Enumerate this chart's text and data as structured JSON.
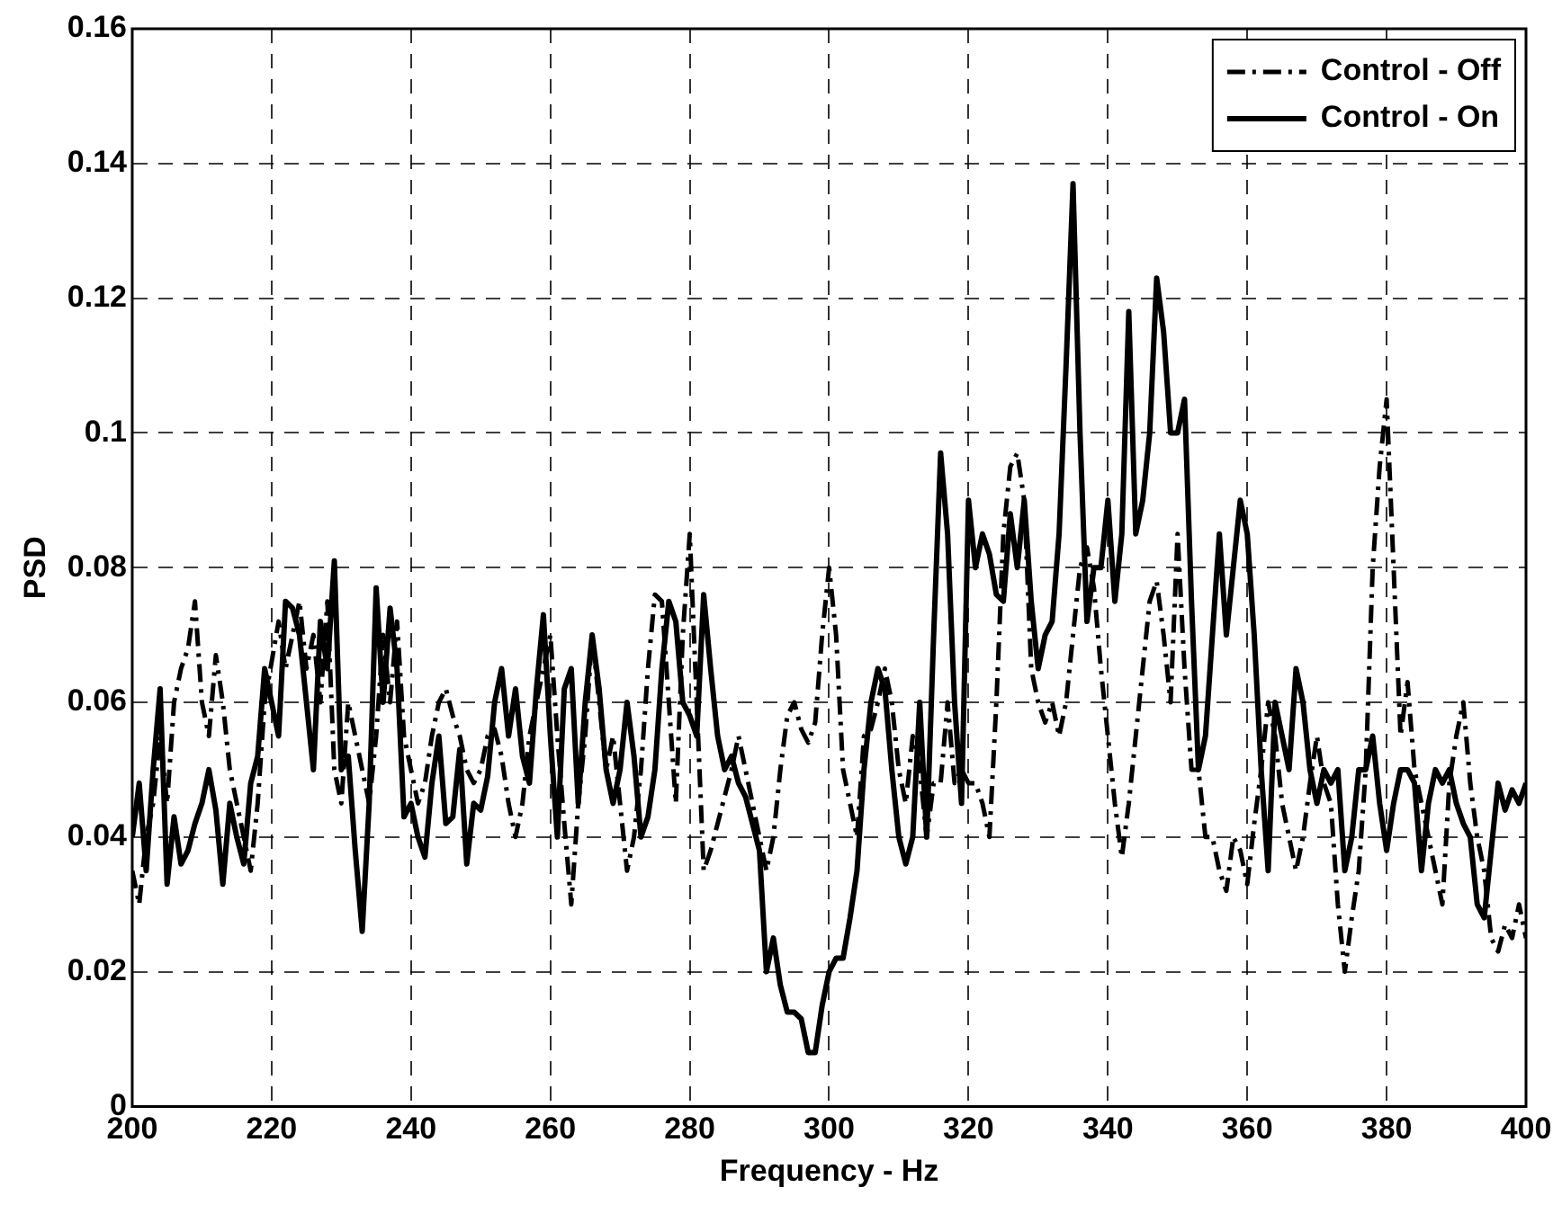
{
  "chart_data": {
    "type": "line",
    "xlabel": "Frequency - Hz",
    "ylabel": "PSD",
    "xlim": [
      200,
      400
    ],
    "xticks": [
      200,
      220,
      240,
      260,
      280,
      300,
      320,
      340,
      360,
      380,
      400
    ],
    "ylim": [
      0,
      0.16
    ],
    "yticks": [
      0,
      0.02,
      0.04,
      0.06,
      0.08,
      0.1,
      0.12,
      0.14,
      0.16
    ],
    "grid": true,
    "legend": "top right",
    "marker": "none",
    "x": [
      200,
      201,
      202,
      203,
      204,
      205,
      206,
      207,
      208,
      209,
      210,
      211,
      212,
      213,
      214,
      215,
      216,
      217,
      218,
      219,
      220,
      221,
      222,
      223,
      224,
      225,
      226,
      227,
      228,
      229,
      230,
      231,
      232,
      233,
      234,
      235,
      236,
      237,
      238,
      239,
      240,
      241,
      242,
      243,
      244,
      245,
      246,
      247,
      248,
      249,
      250,
      251,
      252,
      253,
      254,
      255,
      256,
      257,
      258,
      259,
      260,
      261,
      262,
      263,
      264,
      265,
      266,
      267,
      268,
      269,
      270,
      271,
      272,
      273,
      274,
      275,
      276,
      277,
      278,
      279,
      280,
      281,
      282,
      283,
      284,
      285,
      286,
      287,
      288,
      289,
      290,
      291,
      292,
      293,
      294,
      295,
      296,
      297,
      298,
      299,
      300,
      301,
      302,
      303,
      304,
      305,
      306,
      307,
      308,
      309,
      310,
      311,
      312,
      313,
      314,
      315,
      316,
      317,
      318,
      319,
      320,
      321,
      322,
      323,
      324,
      325,
      326,
      327,
      328,
      329,
      330,
      331,
      332,
      333,
      334,
      335,
      336,
      337,
      338,
      339,
      340,
      341,
      342,
      343,
      344,
      345,
      346,
      347,
      348,
      349,
      350,
      351,
      352,
      353,
      354,
      355,
      356,
      357,
      358,
      359,
      360,
      361,
      362,
      363,
      364,
      365,
      366,
      367,
      368,
      369,
      370,
      371,
      372,
      373,
      374,
      375,
      376,
      377,
      378,
      379,
      380,
      381,
      382,
      383,
      384,
      385,
      386,
      387,
      388,
      389,
      390,
      391,
      392,
      393,
      394,
      395,
      396,
      397,
      398,
      399,
      400
    ],
    "series": [
      {
        "name": "Control - Off",
        "color": "#000000",
        "line_style": "dashed",
        "values": [
          0.035,
          0.03,
          0.04,
          0.045,
          0.055,
          0.045,
          0.06,
          0.065,
          0.068,
          0.075,
          0.06,
          0.055,
          0.067,
          0.06,
          0.05,
          0.045,
          0.04,
          0.035,
          0.045,
          0.06,
          0.066,
          0.072,
          0.065,
          0.07,
          0.075,
          0.065,
          0.07,
          0.06,
          0.075,
          0.05,
          0.045,
          0.06,
          0.055,
          0.05,
          0.045,
          0.055,
          0.07,
          0.06,
          0.072,
          0.055,
          0.05,
          0.045,
          0.048,
          0.055,
          0.06,
          0.062,
          0.058,
          0.055,
          0.05,
          0.048,
          0.05,
          0.055,
          0.056,
          0.052,
          0.045,
          0.04,
          0.045,
          0.055,
          0.06,
          0.065,
          0.07,
          0.055,
          0.042,
          0.03,
          0.045,
          0.055,
          0.07,
          0.06,
          0.05,
          0.055,
          0.045,
          0.035,
          0.04,
          0.05,
          0.065,
          0.076,
          0.075,
          0.06,
          0.045,
          0.07,
          0.085,
          0.06,
          0.035,
          0.038,
          0.042,
          0.046,
          0.05,
          0.055,
          0.05,
          0.045,
          0.04,
          0.035,
          0.04,
          0.05,
          0.058,
          0.06,
          0.056,
          0.054,
          0.057,
          0.07,
          0.08,
          0.07,
          0.05,
          0.045,
          0.04,
          0.055,
          0.056,
          0.06,
          0.065,
          0.06,
          0.05,
          0.045,
          0.055,
          0.05,
          0.04,
          0.048,
          0.048,
          0.06,
          0.048,
          0.05,
          0.048,
          0.048,
          0.045,
          0.04,
          0.06,
          0.085,
          0.095,
          0.097,
          0.09,
          0.065,
          0.06,
          0.057,
          0.06,
          0.055,
          0.06,
          0.07,
          0.08,
          0.083,
          0.077,
          0.065,
          0.055,
          0.045,
          0.037,
          0.045,
          0.055,
          0.065,
          0.075,
          0.078,
          0.07,
          0.06,
          0.085,
          0.065,
          0.05,
          0.05,
          0.04,
          0.04,
          0.035,
          0.032,
          0.04,
          0.038,
          0.033,
          0.042,
          0.05,
          0.06,
          0.055,
          0.045,
          0.04,
          0.035,
          0.04,
          0.048,
          0.055,
          0.048,
          0.045,
          0.03,
          0.02,
          0.028,
          0.035,
          0.05,
          0.08,
          0.095,
          0.105,
          0.08,
          0.055,
          0.063,
          0.05,
          0.045,
          0.04,
          0.035,
          0.03,
          0.048,
          0.055,
          0.06,
          0.048,
          0.04,
          0.035,
          0.025,
          0.023,
          0.027,
          0.025,
          0.03,
          0.025
        ]
      },
      {
        "name": "Control - On",
        "color": "#000000",
        "line_style": "solid",
        "values": [
          0.04,
          0.048,
          0.035,
          0.05,
          0.062,
          0.033,
          0.043,
          0.036,
          0.038,
          0.042,
          0.045,
          0.05,
          0.044,
          0.033,
          0.045,
          0.04,
          0.036,
          0.048,
          0.052,
          0.065,
          0.06,
          0.055,
          0.075,
          0.074,
          0.07,
          0.06,
          0.05,
          0.072,
          0.065,
          0.081,
          0.05,
          0.052,
          0.038,
          0.026,
          0.045,
          0.077,
          0.06,
          0.074,
          0.065,
          0.043,
          0.045,
          0.04,
          0.037,
          0.048,
          0.055,
          0.042,
          0.043,
          0.053,
          0.036,
          0.045,
          0.044,
          0.049,
          0.06,
          0.065,
          0.055,
          0.062,
          0.052,
          0.048,
          0.062,
          0.073,
          0.055,
          0.04,
          0.062,
          0.065,
          0.045,
          0.06,
          0.07,
          0.062,
          0.05,
          0.045,
          0.05,
          0.06,
          0.052,
          0.04,
          0.043,
          0.05,
          0.065,
          0.075,
          0.072,
          0.06,
          0.058,
          0.055,
          0.076,
          0.065,
          0.055,
          0.05,
          0.052,
          0.048,
          0.046,
          0.042,
          0.038,
          0.02,
          0.025,
          0.018,
          0.014,
          0.014,
          0.013,
          0.008,
          0.008,
          0.015,
          0.02,
          0.022,
          0.022,
          0.028,
          0.035,
          0.05,
          0.06,
          0.065,
          0.062,
          0.05,
          0.04,
          0.036,
          0.04,
          0.06,
          0.04,
          0.07,
          0.097,
          0.085,
          0.06,
          0.045,
          0.09,
          0.08,
          0.085,
          0.082,
          0.076,
          0.075,
          0.088,
          0.08,
          0.09,
          0.075,
          0.065,
          0.07,
          0.072,
          0.085,
          0.11,
          0.137,
          0.1,
          0.072,
          0.08,
          0.08,
          0.09,
          0.075,
          0.085,
          0.118,
          0.085,
          0.09,
          0.1,
          0.123,
          0.115,
          0.1,
          0.1,
          0.105,
          0.075,
          0.05,
          0.055,
          0.07,
          0.085,
          0.07,
          0.08,
          0.09,
          0.085,
          0.07,
          0.05,
          0.035,
          0.06,
          0.055,
          0.05,
          0.065,
          0.06,
          0.05,
          0.045,
          0.05,
          0.048,
          0.05,
          0.035,
          0.04,
          0.05,
          0.05,
          0.055,
          0.045,
          0.038,
          0.045,
          0.05,
          0.05,
          0.048,
          0.035,
          0.045,
          0.05,
          0.048,
          0.05,
          0.045,
          0.042,
          0.04,
          0.03,
          0.028,
          0.038,
          0.048,
          0.044,
          0.047,
          0.045,
          0.048
        ]
      }
    ]
  }
}
